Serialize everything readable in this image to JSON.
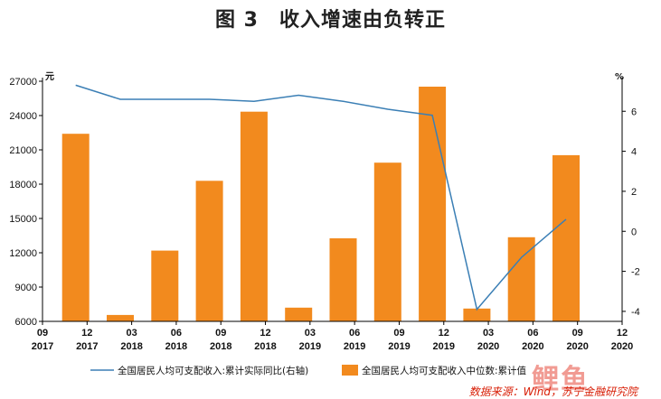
{
  "title": "图 3　收入增速由负转正",
  "source": "数据来源：Wind，苏宁金融研究院",
  "watermark": "鲤鱼",
  "colors": {
    "bar": "#f28a1e",
    "line": "#3b7fb5",
    "axis": "#000000"
  },
  "chart_data": {
    "type": "bar",
    "categories": [
      [
        "12",
        "2017"
      ],
      [
        "03",
        "2018"
      ],
      [
        "06",
        "2018"
      ],
      [
        "09",
        "2018"
      ],
      [
        "12",
        "2018"
      ],
      [
        "03",
        "2019"
      ],
      [
        "06",
        "2019"
      ],
      [
        "09",
        "2019"
      ],
      [
        "12",
        "2019"
      ],
      [
        "03",
        "2020"
      ],
      [
        "06",
        "2020"
      ],
      [
        "09",
        "2020"
      ]
    ],
    "x_edge_labels": {
      "start": [
        "09",
        "2017"
      ],
      "end": [
        "12",
        "2020"
      ]
    },
    "left_axis": {
      "unit": "元",
      "ylim": [
        6000,
        27000
      ],
      "ticks": [
        6000,
        9000,
        12000,
        15000,
        18000,
        21000,
        24000,
        27000
      ]
    },
    "right_axis": {
      "unit": "%",
      "ylim": [
        -4.5,
        7.5
      ],
      "ticks": [
        -4,
        -2,
        0,
        2,
        4,
        6
      ]
    },
    "series": [
      {
        "name": "全国居民人均可支配收入中位数:累计值",
        "kind": "bar",
        "axis": "left",
        "values": [
          22408,
          6564,
          12188,
          18292,
          24336,
          7199,
          13262,
          19882,
          26523,
          7124,
          13358,
          20533
        ]
      },
      {
        "name": "全国居民人均可支配收入:累计实际同比(右轴)",
        "kind": "line",
        "axis": "right",
        "values": [
          7.3,
          6.6,
          6.6,
          6.6,
          6.5,
          6.8,
          6.5,
          6.1,
          5.8,
          -3.9,
          -1.3,
          0.6
        ]
      }
    ],
    "legend_position": "bottom",
    "grid": false
  }
}
